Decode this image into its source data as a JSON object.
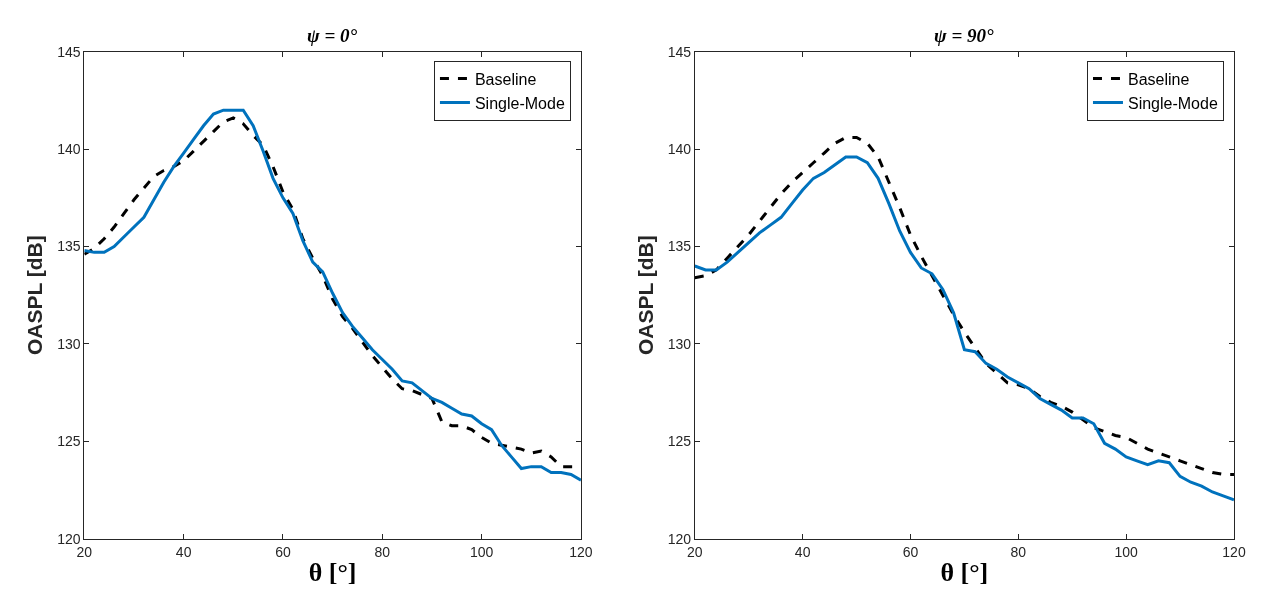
{
  "chart_data": [
    {
      "type": "line",
      "title": "ψ = 0°",
      "xlabel": "θ [°]",
      "ylabel": "OASPL [dB]",
      "xlim": [
        20,
        120
      ],
      "xticks": [
        20,
        40,
        60,
        80,
        100,
        120
      ],
      "ylim": [
        120,
        145
      ],
      "yticks": [
        120,
        125,
        130,
        135,
        140,
        145
      ],
      "legend": "top right",
      "marker": "none",
      "x": [
        20,
        22,
        24,
        26,
        28,
        30,
        32,
        34,
        36,
        38,
        40,
        42,
        44,
        46,
        48,
        50,
        52,
        54,
        56,
        58,
        60,
        62,
        64,
        66,
        68,
        70,
        72,
        74,
        76,
        78,
        80,
        82,
        84,
        86,
        88,
        90,
        92,
        94,
        96,
        98,
        100,
        102,
        104,
        106,
        108,
        110,
        112,
        114,
        116,
        118,
        120
      ],
      "series": [
        {
          "name": "Baseline",
          "color": "#000000",
          "line_style": "dashed",
          "values": [
            134.6,
            134.9,
            135.4,
            136.0,
            136.7,
            137.4,
            138.0,
            138.6,
            138.9,
            139.1,
            139.4,
            139.9,
            140.4,
            140.9,
            141.4,
            141.6,
            141.3,
            140.7,
            140.2,
            139.1,
            137.8,
            136.9,
            135.4,
            134.4,
            133.5,
            132.3,
            131.4,
            130.8,
            130.1,
            129.4,
            128.8,
            128.2,
            127.7,
            127.6,
            127.4,
            127.2,
            126.0,
            125.8,
            125.8,
            125.6,
            125.2,
            124.9,
            124.8,
            124.7,
            124.6,
            124.4,
            124.5,
            124.2,
            123.7,
            123.7,
            123.7
          ]
        },
        {
          "name": "Single-Mode",
          "color": "#0072bd",
          "line_style": "solid",
          "values": [
            134.8,
            134.7,
            134.7,
            135.0,
            135.5,
            136.0,
            136.5,
            137.4,
            138.3,
            139.1,
            139.8,
            140.5,
            141.2,
            141.8,
            142.0,
            142.0,
            142.0,
            141.2,
            139.9,
            138.5,
            137.5,
            136.7,
            135.3,
            134.2,
            133.7,
            132.6,
            131.6,
            130.9,
            130.3,
            129.7,
            129.2,
            128.7,
            128.1,
            128.0,
            127.6,
            127.2,
            127.0,
            126.7,
            126.4,
            126.3,
            125.9,
            125.6,
            124.8,
            124.2,
            123.6,
            123.7,
            123.7,
            123.4,
            123.4,
            123.3,
            123.0
          ]
        }
      ]
    },
    {
      "type": "line",
      "title": "ψ = 90°",
      "xlabel": "θ [°]",
      "ylabel": "OASPL [dB]",
      "xlim": [
        20,
        120
      ],
      "xticks": [
        20,
        40,
        60,
        80,
        100,
        120
      ],
      "ylim": [
        120,
        145
      ],
      "yticks": [
        120,
        125,
        130,
        135,
        140,
        145
      ],
      "legend": "top right",
      "marker": "none",
      "x": [
        20,
        22,
        24,
        26,
        28,
        30,
        32,
        34,
        36,
        38,
        40,
        42,
        44,
        46,
        48,
        50,
        52,
        54,
        56,
        58,
        60,
        62,
        64,
        66,
        68,
        70,
        72,
        74,
        76,
        78,
        80,
        82,
        84,
        86,
        88,
        90,
        92,
        94,
        96,
        98,
        100,
        102,
        104,
        106,
        108,
        110,
        112,
        114,
        116,
        118,
        120
      ],
      "series": [
        {
          "name": "Baseline",
          "color": "#000000",
          "line_style": "dashed",
          "values": [
            133.4,
            133.5,
            133.8,
            134.4,
            135.0,
            135.6,
            136.3,
            137.0,
            137.7,
            138.3,
            138.8,
            139.3,
            139.8,
            140.3,
            140.6,
            140.6,
            140.3,
            139.6,
            138.3,
            137.0,
            135.6,
            134.5,
            133.5,
            132.5,
            131.5,
            130.6,
            129.8,
            129.0,
            128.5,
            128.0,
            127.9,
            127.7,
            127.3,
            127.0,
            126.8,
            126.5,
            126.1,
            125.7,
            125.5,
            125.3,
            125.2,
            124.9,
            124.6,
            124.4,
            124.2,
            124.0,
            123.8,
            123.6,
            123.4,
            123.3,
            123.3
          ]
        },
        {
          "name": "Single-Mode",
          "color": "#0072bd",
          "line_style": "solid",
          "values": [
            134.0,
            133.8,
            133.8,
            134.2,
            134.7,
            135.2,
            135.7,
            136.1,
            136.5,
            137.2,
            137.9,
            138.5,
            138.8,
            139.2,
            139.6,
            139.6,
            139.3,
            138.5,
            137.2,
            135.8,
            134.7,
            133.9,
            133.6,
            132.8,
            131.6,
            129.7,
            129.6,
            129.0,
            128.7,
            128.3,
            128.0,
            127.7,
            127.2,
            126.9,
            126.6,
            126.2,
            126.2,
            125.9,
            124.9,
            124.6,
            124.2,
            124.0,
            123.8,
            124.0,
            123.9,
            123.2,
            122.9,
            122.7,
            122.4,
            122.2,
            122.0
          ]
        }
      ]
    }
  ]
}
